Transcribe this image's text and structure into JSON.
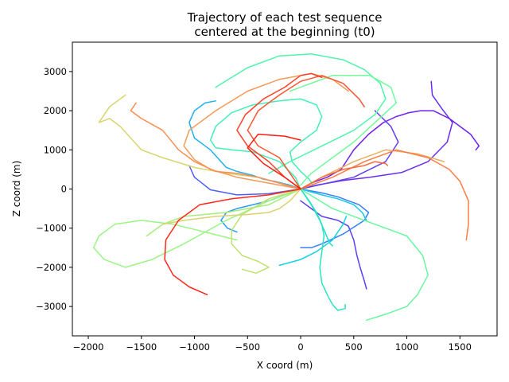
{
  "chart_data": {
    "type": "line",
    "title_lines": [
      "Trajectory of each test sequence",
      "centered at the beginning (t0)"
    ],
    "xlabel": "X coord (m)",
    "ylabel": "Z coord (m)",
    "xlim": [
      -2150,
      1850
    ],
    "ylim": [
      -3750,
      3750
    ],
    "xticks": [
      -2000,
      -1500,
      -1000,
      -500,
      0,
      500,
      1000,
      1500
    ],
    "yticks": [
      -3000,
      -2000,
      -1000,
      0,
      1000,
      2000,
      3000
    ],
    "grid": false,
    "legend": "none",
    "colormap": "rainbow",
    "series": [
      {
        "color": "#6a2df0",
        "x": [
          0,
          150,
          400,
          650,
          950,
          1200,
          1380,
          1430,
          1330,
          1240,
          1230
        ],
        "y": [
          0,
          100,
          220,
          300,
          420,
          700,
          1200,
          1700,
          2050,
          2400,
          2750
        ]
      },
      {
        "color": "#5b3ff5",
        "x": [
          0,
          100,
          200,
          350,
          450,
          500,
          530,
          560,
          600,
          620
        ],
        "y": [
          -300,
          -500,
          -700,
          -800,
          -950,
          -1300,
          -1700,
          -2000,
          -2350,
          -2550
        ]
      },
      {
        "color": "#7020ee",
        "x": [
          0,
          100,
          250,
          380,
          500,
          640,
          780,
          900,
          1020,
          1130,
          1250,
          1400,
          1600,
          1680,
          1650
        ],
        "y": [
          0,
          150,
          300,
          500,
          1000,
          1400,
          1700,
          1850,
          1950,
          2000,
          2000,
          1800,
          1400,
          1100,
          1000
        ]
      },
      {
        "color": "#6540f2",
        "x": [
          0,
          500,
          800,
          920,
          850,
          700
        ],
        "y": [
          0,
          300,
          700,
          1200,
          1600,
          2000
        ]
      },
      {
        "color": "#4d60f8",
        "x": [
          0,
          -300,
          -600,
          -850,
          -1000,
          -1050
        ],
        "y": [
          0,
          -120,
          -150,
          -20,
          300,
          600
        ]
      },
      {
        "color": "#3880f8",
        "x": [
          0,
          200,
          350,
          450,
          550,
          640,
          600,
          400,
          200,
          100,
          0
        ],
        "y": [
          0,
          -100,
          -200,
          -300,
          -400,
          -600,
          -800,
          -1150,
          -1400,
          -1500,
          -1500
        ]
      },
      {
        "color": "#2a9af5",
        "x": [
          0,
          -300,
          -600,
          -700,
          -750,
          -690,
          -600
        ],
        "y": [
          0,
          -300,
          -500,
          -600,
          -800,
          -1000,
          -1100
        ]
      },
      {
        "color": "#20b0ee",
        "x": [
          0,
          -100,
          -250,
          -350,
          -450,
          -600,
          -700,
          -750,
          -850,
          -1000,
          -1050,
          -1000,
          -900,
          -800
        ],
        "y": [
          0,
          100,
          200,
          250,
          350,
          450,
          550,
          700,
          1000,
          1300,
          1700,
          2000,
          2200,
          2250
        ]
      },
      {
        "color": "#18c8e4",
        "x": [
          0,
          200,
          350,
          450,
          500,
          580,
          620
        ],
        "y": [
          0,
          -150,
          -250,
          -350,
          -400,
          -600,
          -800
        ]
      },
      {
        "color": "#14d2df",
        "x": [
          -200,
          0,
          150,
          300,
          400,
          430
        ],
        "y": [
          -1950,
          -1800,
          -1600,
          -1300,
          -900,
          -700
        ]
      },
      {
        "color": "#20dcd0",
        "x": [
          0,
          100,
          180,
          230,
          260,
          280,
          300
        ],
        "y": [
          0,
          -400,
          -800,
          -1100,
          -1300,
          -1400,
          -1450
        ]
      },
      {
        "color": "#28e4c5",
        "x": [
          0,
          80,
          150,
          200,
          220,
          200,
          180,
          200,
          260,
          300,
          350,
          420,
          420
        ],
        "y": [
          0,
          -300,
          -600,
          -900,
          -1200,
          -1600,
          -2000,
          -2400,
          -2750,
          -2950,
          -3100,
          -3050,
          -2950
        ]
      },
      {
        "color": "#40f0b8",
        "x": [
          0,
          -50,
          -200,
          -450,
          -650,
          -800,
          -850,
          -800,
          -650,
          -450,
          -200,
          0,
          150,
          200,
          150,
          0,
          -100,
          -80,
          0,
          80,
          120
        ],
        "y": [
          0,
          300,
          700,
          950,
          1000,
          1050,
          1250,
          1600,
          1950,
          2150,
          2250,
          2300,
          2150,
          1850,
          1500,
          1200,
          950,
          700,
          450,
          250,
          100
        ]
      },
      {
        "color": "#50f4ac",
        "x": [
          -800,
          -500,
          -200,
          100,
          400,
          600,
          750,
          800,
          700,
          500,
          200,
          -100,
          -300
        ],
        "y": [
          2600,
          3100,
          3400,
          3450,
          3300,
          3050,
          2700,
          2300,
          1900,
          1500,
          1100,
          700,
          400
        ]
      },
      {
        "color": "#70fa9c",
        "x": [
          -100,
          300,
          650,
          850,
          900,
          700,
          500,
          300,
          100,
          0
        ],
        "y": [
          2500,
          2900,
          2900,
          2600,
          2200,
          1700,
          1200,
          800,
          400,
          100
        ]
      },
      {
        "color": "#6af5a0",
        "x": [
          0,
          300,
          700,
          1000,
          1150,
          1200,
          1100,
          1000,
          800,
          620
        ],
        "y": [
          0,
          -500,
          -900,
          -1200,
          -1700,
          -2200,
          -2700,
          -3000,
          -3200,
          -3350
        ]
      },
      {
        "color": "#9af585",
        "x": [
          0,
          -300,
          -700,
          -1100,
          -1400,
          -1650,
          -1850,
          -1950,
          -1900,
          -1750,
          -1500,
          -1200,
          -900,
          -600
        ],
        "y": [
          0,
          -300,
          -800,
          -1400,
          -1800,
          -2000,
          -1800,
          -1500,
          -1200,
          -900,
          -800,
          -900,
          -1100,
          -1300
        ]
      },
      {
        "color": "#a6eb7c",
        "x": [
          0,
          -300,
          -700,
          -1100,
          -1300,
          -1450
        ],
        "y": [
          0,
          -400,
          -600,
          -700,
          -900,
          -1200
        ]
      },
      {
        "color": "#c0e070",
        "x": [
          0,
          -300,
          -550,
          -650,
          -650,
          -550,
          -400,
          -300,
          -420,
          -550
        ],
        "y": [
          0,
          -250,
          -650,
          -1050,
          -1400,
          -1700,
          -1850,
          -2000,
          -2150,
          -2050
        ]
      },
      {
        "color": "#d6d56e",
        "x": [
          0,
          -200,
          -400,
          -700,
          -1000,
          -1300,
          -1500,
          -1600,
          -1700,
          -1800,
          -1900,
          -1800,
          -1650
        ],
        "y": [
          0,
          150,
          300,
          400,
          550,
          800,
          1000,
          1300,
          1600,
          1800,
          1700,
          2100,
          2400
        ]
      },
      {
        "color": "#dcd070",
        "x": [
          0,
          -100,
          -200,
          -300,
          -500,
          -800,
          -1100,
          -1300
        ],
        "y": [
          0,
          -300,
          -500,
          -600,
          -650,
          -700,
          -800,
          -900
        ]
      },
      {
        "color": "#eaaf60",
        "x": [
          0,
          200,
          500,
          800,
          1100,
          1350
        ],
        "y": [
          0,
          300,
          700,
          1000,
          900,
          700
        ]
      },
      {
        "color": "#f59a58",
        "x": [
          0,
          -300,
          -600,
          -850,
          -1000,
          -1100,
          -1050,
          -800,
          -500,
          -200,
          100,
          300,
          450
        ],
        "y": [
          0,
          150,
          300,
          500,
          750,
          1100,
          1500,
          2000,
          2500,
          2800,
          2950,
          2800,
          2500
        ]
      },
      {
        "color": "#fa8d50",
        "x": [
          0,
          -200,
          -400,
          -600,
          -800,
          -1000,
          -1150,
          -1300,
          -1500,
          -1600,
          -1550,
          -1550
        ],
        "y": [
          0,
          150,
          300,
          400,
          450,
          700,
          1000,
          1500,
          1800,
          2000,
          2200,
          2200
        ]
      },
      {
        "color": "#fb7d45",
        "x": [
          0,
          300,
          600,
          900,
          1200,
          1400,
          1500,
          1580,
          1580,
          1560
        ],
        "y": [
          0,
          300,
          700,
          1000,
          800,
          500,
          200,
          -300,
          -900,
          -1300
        ]
      },
      {
        "color": "#fd6a38",
        "x": [
          0,
          200,
          400,
          600,
          700,
          800,
          820
        ],
        "y": [
          0,
          300,
          500,
          600,
          700,
          650,
          600
        ]
      },
      {
        "color": "#fe5530",
        "x": [
          0,
          -100,
          -200,
          -400,
          -500,
          -400,
          -200,
          0,
          200,
          400,
          550,
          600
        ],
        "y": [
          0,
          400,
          800,
          1100,
          1500,
          2000,
          2400,
          2750,
          2900,
          2700,
          2300,
          2100
        ]
      },
      {
        "color": "#ff4128",
        "x": [
          0,
          -150,
          -300,
          -500,
          -600,
          -520,
          -350,
          -150,
          0,
          100,
          200
        ],
        "y": [
          0,
          300,
          700,
          1100,
          1500,
          1900,
          2300,
          2600,
          2900,
          2950,
          2850
        ]
      },
      {
        "color": "#ff2818",
        "x": [
          0,
          -300,
          -650,
          -950,
          -1150,
          -1270,
          -1280,
          -1200,
          -1050,
          -880
        ],
        "y": [
          0,
          -150,
          -250,
          -400,
          -800,
          -1300,
          -1800,
          -2200,
          -2500,
          -2700
        ]
      },
      {
        "color": "#ff1a10",
        "x": [
          0,
          -150,
          -350,
          -500,
          -400,
          -150,
          0
        ],
        "y": [
          0,
          300,
          650,
          1050,
          1400,
          1350,
          1250
        ]
      }
    ]
  }
}
